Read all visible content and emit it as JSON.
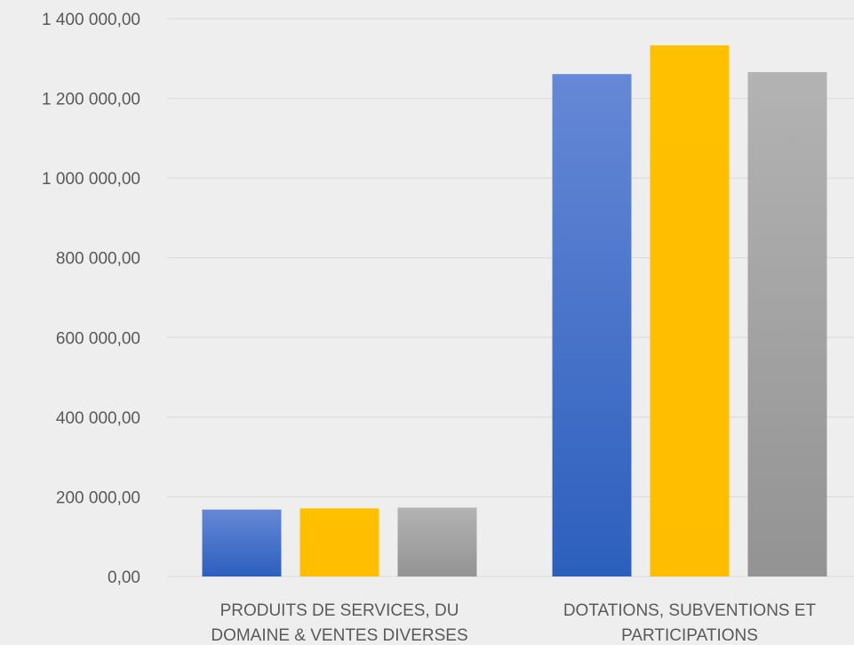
{
  "chart_data": {
    "type": "bar",
    "categories": [
      [
        "PRODUITS DE SERVICES, DU",
        "DOMAINE & VENTES DIVERSES"
      ],
      [
        "DOTATIONS, SUBVENTIONS ET",
        "PARTICIPATIONS"
      ]
    ],
    "series": [
      {
        "values": [
          168000,
          1261000
        ],
        "color": "#3a6fd0"
      },
      {
        "values": [
          171000,
          1333000
        ],
        "color": "#ffc000"
      },
      {
        "values": [
          173000,
          1266000
        ],
        "color": "#a5a5a5"
      }
    ],
    "yticks": [
      {
        "value": 0,
        "label": "0,00"
      },
      {
        "value": 200000,
        "label": "200 000,00"
      },
      {
        "value": 400000,
        "label": "400 000,00"
      },
      {
        "value": 600000,
        "label": "600 000,00"
      },
      {
        "value": 800000,
        "label": "800 000,00"
      },
      {
        "value": 1000000,
        "label": "1 000 000,00"
      },
      {
        "value": 1200000,
        "label": "1 200 000,00"
      },
      {
        "value": 1400000,
        "label": "1 400 000,00"
      }
    ],
    "ylim": [
      0,
      1400000
    ],
    "grid": true,
    "legend": "none"
  }
}
